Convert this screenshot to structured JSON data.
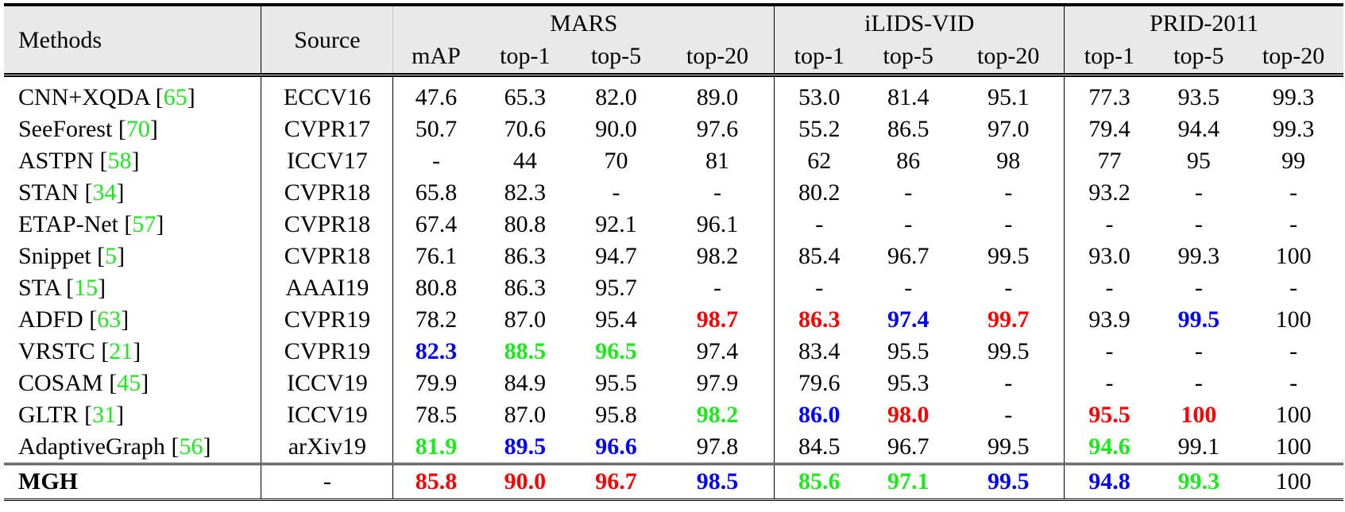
{
  "table": {
    "headers": {
      "methods": "Methods",
      "source": "Source",
      "datasets": [
        {
          "name": "MARS",
          "metrics": [
            "mAP",
            "top-1",
            "top-5",
            "top-20"
          ]
        },
        {
          "name": "iLIDS-VID",
          "metrics": [
            "top-1",
            "top-5",
            "top-20"
          ]
        },
        {
          "name": "PRID-2011",
          "metrics": [
            "top-1",
            "top-5",
            "top-20"
          ]
        }
      ]
    },
    "colors": {
      "first": "#ff0000",
      "second": "#0000ff",
      "third": "#1ee81e",
      "citation": "#1ee81e"
    },
    "rows": [
      {
        "method": "CNN+XQDA",
        "cite": "65",
        "source": "ECCV16",
        "values": [
          "47.6",
          "65.3",
          "82.0",
          "89.0",
          "53.0",
          "81.4",
          "95.1",
          "77.3",
          "93.5",
          "99.3"
        ],
        "styles": [
          "",
          "",
          "",
          "",
          "",
          "",
          "",
          "",
          "",
          ""
        ]
      },
      {
        "method": "SeeForest",
        "cite": "70",
        "source": "CVPR17",
        "values": [
          "50.7",
          "70.6",
          "90.0",
          "97.6",
          "55.2",
          "86.5",
          "97.0",
          "79.4",
          "94.4",
          "99.3"
        ],
        "styles": [
          "",
          "",
          "",
          "",
          "",
          "",
          "",
          "",
          "",
          ""
        ]
      },
      {
        "method": "ASTPN",
        "cite": "58",
        "source": "ICCV17",
        "values": [
          "-",
          "44",
          "70",
          "81",
          "62",
          "86",
          "98",
          "77",
          "95",
          "99"
        ],
        "styles": [
          "",
          "",
          "",
          "",
          "",
          "",
          "",
          "",
          "",
          ""
        ]
      },
      {
        "method": "STAN",
        "cite": "34",
        "source": "CVPR18",
        "values": [
          "65.8",
          "82.3",
          "-",
          "-",
          "80.2",
          "-",
          "-",
          "93.2",
          "-",
          "-"
        ],
        "styles": [
          "",
          "",
          "",
          "",
          "",
          "",
          "",
          "",
          "",
          ""
        ]
      },
      {
        "method": "ETAP-Net",
        "cite": "57",
        "source": "CVPR18",
        "values": [
          "67.4",
          "80.8",
          "92.1",
          "96.1",
          "-",
          "-",
          "-",
          "-",
          "-",
          "-"
        ],
        "styles": [
          "",
          "",
          "",
          "",
          "",
          "",
          "",
          "",
          "",
          ""
        ]
      },
      {
        "method": "Snippet",
        "cite": "5",
        "source": "CVPR18",
        "values": [
          "76.1",
          "86.3",
          "94.7",
          "98.2",
          "85.4",
          "96.7",
          "99.5",
          "93.0",
          "99.3",
          "100"
        ],
        "styles": [
          "",
          "",
          "",
          "",
          "",
          "",
          "",
          "",
          "",
          ""
        ]
      },
      {
        "method": "STA",
        "cite": "15",
        "source": "AAAI19",
        "values": [
          "80.8",
          "86.3",
          "95.7",
          "-",
          "-",
          "-",
          "-",
          "-",
          "-",
          "-"
        ],
        "styles": [
          "",
          "",
          "",
          "",
          "",
          "",
          "",
          "",
          "",
          ""
        ]
      },
      {
        "method": "ADFD",
        "cite": "63",
        "source": "CVPR19",
        "values": [
          "78.2",
          "87.0",
          "95.4",
          "98.7",
          "86.3",
          "97.4",
          "99.7",
          "93.9",
          "99.5",
          "100"
        ],
        "styles": [
          "",
          "",
          "",
          "red",
          "red",
          "blue",
          "red",
          "",
          "blue",
          ""
        ]
      },
      {
        "method": "VRSTC",
        "cite": "21",
        "source": "CVPR19",
        "values": [
          "82.3",
          "88.5",
          "96.5",
          "97.4",
          "83.4",
          "95.5",
          "99.5",
          "-",
          "-",
          "-"
        ],
        "styles": [
          "blue",
          "green",
          "green",
          "",
          "",
          "",
          "",
          "",
          "",
          ""
        ]
      },
      {
        "method": "COSAM",
        "cite": "45",
        "source": "ICCV19",
        "values": [
          "79.9",
          "84.9",
          "95.5",
          "97.9",
          "79.6",
          "95.3",
          "-",
          "-",
          "-",
          "-"
        ],
        "styles": [
          "",
          "",
          "",
          "",
          "",
          "",
          "",
          "",
          "",
          ""
        ]
      },
      {
        "method": "GLTR",
        "cite": "31",
        "source": "ICCV19",
        "values": [
          "78.5",
          "87.0",
          "95.8",
          "98.2",
          "86.0",
          "98.0",
          "-",
          "95.5",
          "100",
          "100"
        ],
        "styles": [
          "",
          "",
          "",
          "green",
          "blue",
          "red",
          "",
          "red",
          "red",
          ""
        ]
      },
      {
        "method": "AdaptiveGraph",
        "cite": "56",
        "source": "arXiv19",
        "values": [
          "81.9",
          "89.5",
          "96.6",
          "97.8",
          "84.5",
          "96.7",
          "99.5",
          "94.6",
          "99.1",
          "100"
        ],
        "styles": [
          "green",
          "blue",
          "blue",
          "",
          "",
          "",
          "",
          "green",
          "",
          ""
        ]
      }
    ],
    "ours": {
      "method": "MGH",
      "source": "-",
      "values": [
        "85.8",
        "90.0",
        "96.7",
        "98.5",
        "85.6",
        "97.1",
        "99.5",
        "94.8",
        "99.3",
        "100"
      ],
      "styles": [
        "red",
        "red",
        "red",
        "blue",
        "green",
        "green",
        "blue",
        "blue",
        "green",
        ""
      ]
    }
  }
}
